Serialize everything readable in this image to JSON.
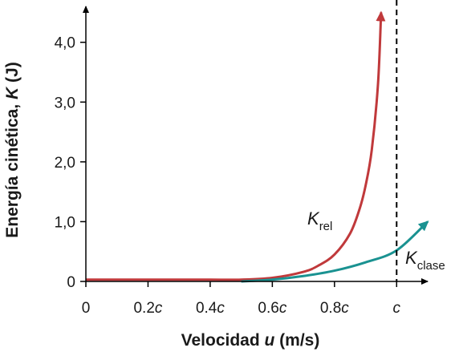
{
  "chart_data": {
    "type": "line",
    "xlabel": {
      "prefix": "Velocidad ",
      "var": "u",
      "suffix": " (m/s)"
    },
    "ylabel": {
      "prefix": "Energía cinética, ",
      "var": "K",
      "suffix": " (J)"
    },
    "x_ticks": [
      {
        "value": 0.0,
        "num": "0",
        "sym": ""
      },
      {
        "value": 0.2,
        "num": "0.2",
        "sym": "c"
      },
      {
        "value": 0.4,
        "num": "0.4",
        "sym": "c"
      },
      {
        "value": 0.6,
        "num": "0.6",
        "sym": "c"
      },
      {
        "value": 0.8,
        "num": "0.8",
        "sym": "c"
      },
      {
        "value": 1.0,
        "num": "",
        "sym": "c"
      }
    ],
    "y_ticks": [
      {
        "value": 0,
        "label": "0"
      },
      {
        "value": 1,
        "label": "1,0"
      },
      {
        "value": 2,
        "label": "2,0"
      },
      {
        "value": 3,
        "label": "3,0"
      },
      {
        "value": 4,
        "label": "4,0"
      }
    ],
    "xlim": [
      0,
      1.1
    ],
    "ylim": [
      0,
      4.6
    ],
    "asymptote": {
      "x": 1.0,
      "style": "dashed"
    },
    "series": [
      {
        "key": "rel",
        "label_main": "K",
        "label_sub": "rel",
        "color": "#c0393b",
        "x": [
          0.0,
          0.3,
          0.4,
          0.5,
          0.6,
          0.7,
          0.75,
          0.8,
          0.85,
          0.88,
          0.9,
          0.92,
          0.94,
          0.95
        ],
        "y": [
          0.03,
          0.03,
          0.03,
          0.03,
          0.06,
          0.16,
          0.27,
          0.45,
          0.8,
          1.2,
          1.6,
          2.2,
          3.3,
          4.5
        ]
      },
      {
        "key": "clase",
        "label_main": "K",
        "label_sub": "clase",
        "color": "#1a9291",
        "x": [
          0.5,
          0.6,
          0.7,
          0.8,
          0.9,
          1.0,
          1.1
        ],
        "y": [
          0.0,
          0.03,
          0.09,
          0.18,
          0.32,
          0.52,
          1.0
        ]
      }
    ]
  }
}
